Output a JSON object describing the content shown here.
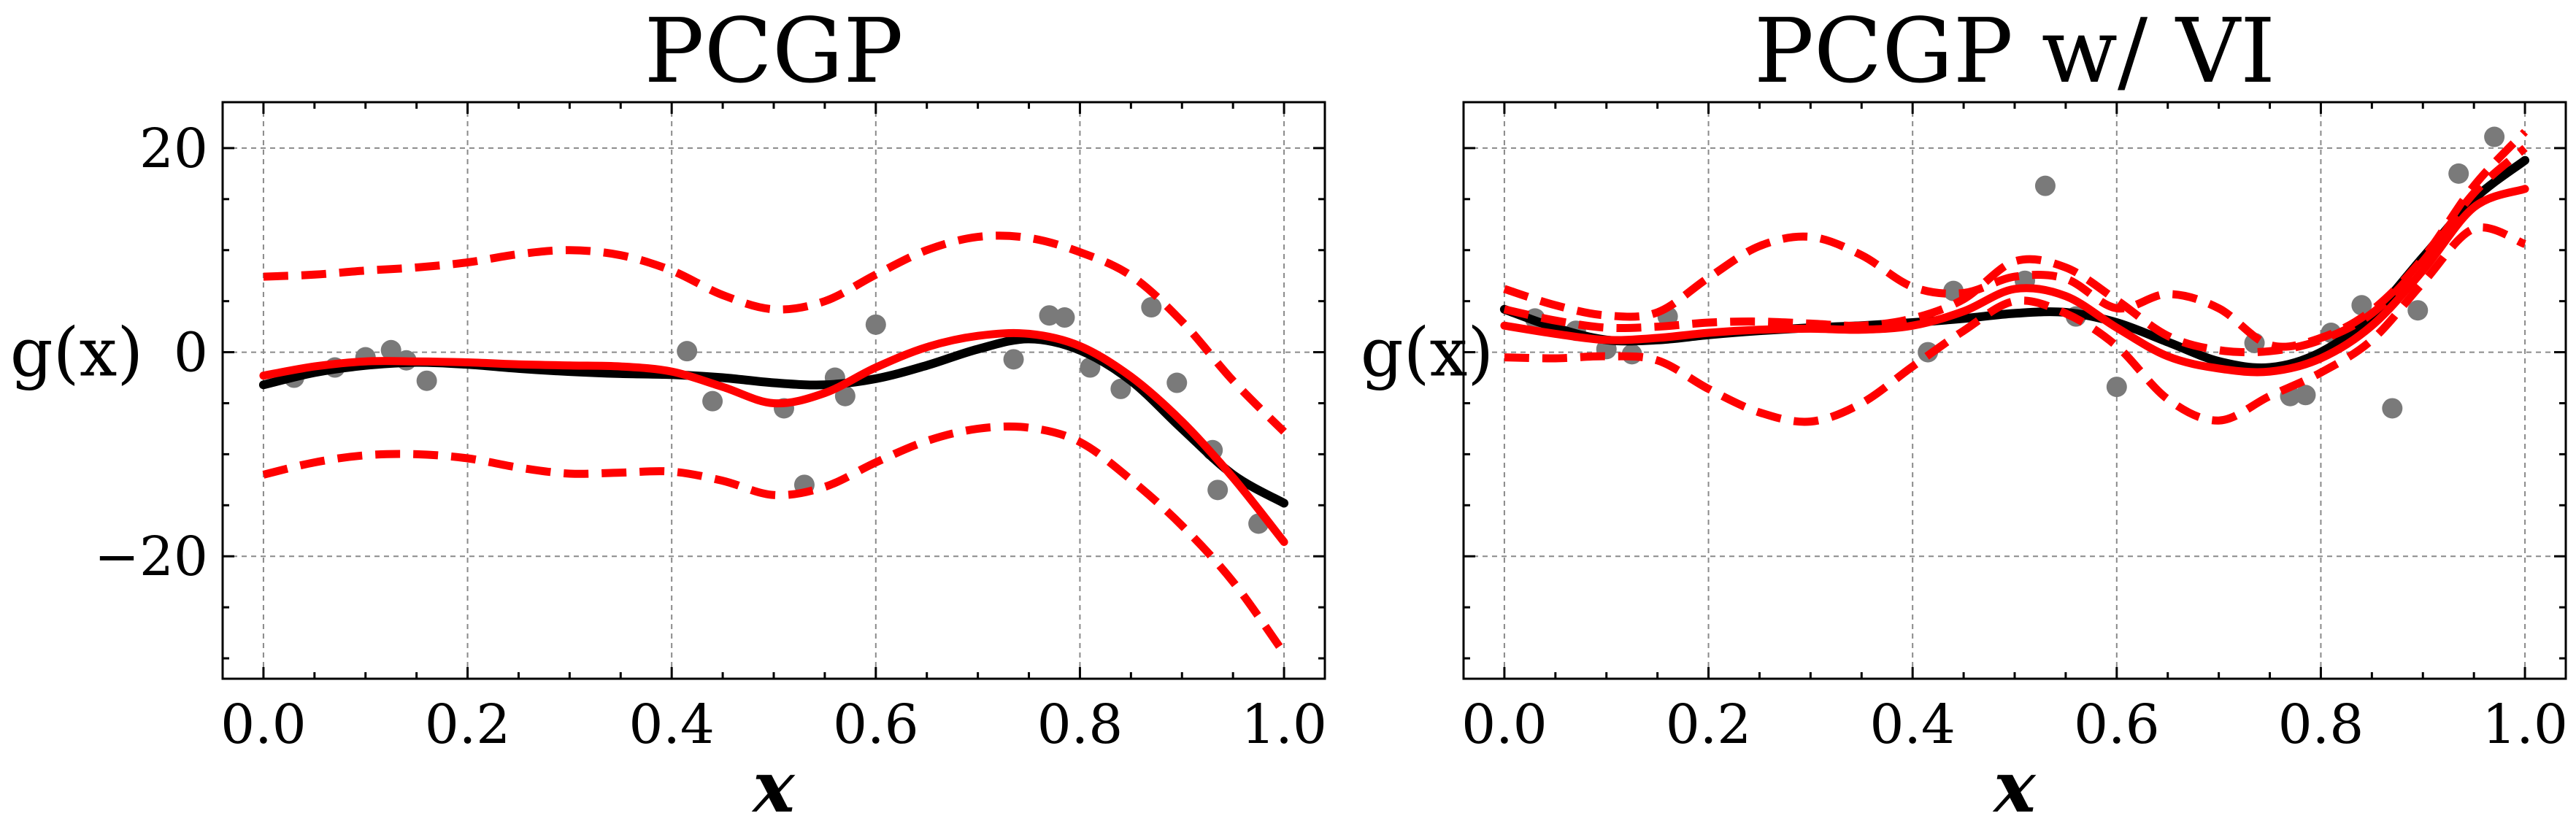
{
  "chart_data": [
    {
      "type": "line",
      "title": "PCGP",
      "xlabel": "x",
      "ylabel": "g(x)",
      "xlim": [
        -0.04,
        1.04
      ],
      "ylim": [
        -32,
        24.5
      ],
      "xticks": [
        0.0,
        0.2,
        0.4,
        0.6,
        0.8,
        1.0
      ],
      "xtick_labels": [
        "0.0",
        "0.2",
        "0.4",
        "0.6",
        "0.8",
        "1.0"
      ],
      "yticks": [
        20,
        0,
        -20
      ],
      "ytick_labels": [
        "20",
        "0",
        "−20"
      ],
      "show_y_tick_labels": true,
      "grid": true,
      "points": {
        "x": [
          0.03,
          0.07,
          0.1,
          0.125,
          0.14,
          0.16,
          0.415,
          0.44,
          0.51,
          0.53,
          0.56,
          0.57,
          0.6,
          0.735,
          0.77,
          0.785,
          0.81,
          0.84,
          0.87,
          0.895,
          0.93,
          0.935,
          0.975
        ],
        "y": [
          -2.5,
          -1.5,
          -0.5,
          0.2,
          -0.8,
          -2.8,
          0.1,
          -4.8,
          -5.5,
          -13,
          -2.5,
          -4.3,
          2.7,
          -0.7,
          3.6,
          3.4,
          -1.5,
          -3.6,
          4.4,
          -3,
          -9.6,
          -13.5,
          -16.8
        ]
      },
      "series": [
        {
          "role": "true-function",
          "color": "#000000",
          "x": [
            0.0,
            0.05,
            0.1,
            0.15,
            0.2,
            0.25,
            0.3,
            0.35,
            0.4,
            0.45,
            0.5,
            0.55,
            0.6,
            0.65,
            0.7,
            0.75,
            0.8,
            0.85,
            0.9,
            0.95,
            1.0
          ],
          "y": [
            -3.2,
            -2.0,
            -1.3,
            -1.0,
            -1.2,
            -1.6,
            -1.9,
            -2.1,
            -2.2,
            -2.5,
            -3.0,
            -3.2,
            -2.6,
            -1.3,
            0.3,
            1.3,
            0.2,
            -2.8,
            -7.5,
            -12.0,
            -14.8
          ]
        },
        {
          "role": "prediction",
          "color": "#ff0000",
          "x": [
            0.0,
            0.05,
            0.1,
            0.15,
            0.2,
            0.25,
            0.3,
            0.35,
            0.4,
            0.45,
            0.5,
            0.55,
            0.6,
            0.65,
            0.7,
            0.75,
            0.8,
            0.85,
            0.9,
            0.95,
            1.0
          ],
          "y": [
            -2.3,
            -1.4,
            -0.9,
            -0.9,
            -1.0,
            -1.2,
            -1.3,
            -1.4,
            -1.9,
            -3.4,
            -5.0,
            -4.0,
            -1.5,
            0.5,
            1.6,
            1.8,
            0.6,
            -2.4,
            -6.8,
            -12.3,
            -18.6
          ]
        },
        {
          "role": "upper-band",
          "color": "#ff0000",
          "x": [
            0.0,
            0.05,
            0.1,
            0.15,
            0.2,
            0.25,
            0.3,
            0.35,
            0.4,
            0.45,
            0.5,
            0.55,
            0.6,
            0.65,
            0.7,
            0.75,
            0.8,
            0.85,
            0.9,
            0.95,
            1.0
          ],
          "y": [
            7.4,
            7.6,
            8.0,
            8.3,
            8.8,
            9.6,
            10.0,
            9.5,
            8.0,
            5.6,
            4.2,
            5.0,
            7.6,
            10.0,
            11.3,
            11.2,
            9.8,
            7.5,
            3.0,
            -2.8,
            -7.8
          ]
        },
        {
          "role": "lower-band",
          "color": "#ff0000",
          "x": [
            0.0,
            0.05,
            0.1,
            0.15,
            0.2,
            0.25,
            0.3,
            0.35,
            0.4,
            0.45,
            0.5,
            0.55,
            0.6,
            0.65,
            0.7,
            0.75,
            0.8,
            0.85,
            0.9,
            0.95,
            1.0
          ],
          "y": [
            -12.0,
            -10.8,
            -10.1,
            -10.0,
            -10.4,
            -11.3,
            -11.9,
            -11.8,
            -11.7,
            -12.6,
            -14.0,
            -13.2,
            -10.8,
            -8.7,
            -7.5,
            -7.4,
            -8.8,
            -12.5,
            -17.0,
            -22.5,
            -29.5
          ]
        }
      ]
    },
    {
      "type": "line",
      "title": "PCGP w/ VI",
      "xlabel": "x",
      "ylabel": "g(x)",
      "xlim": [
        -0.04,
        1.04
      ],
      "ylim": [
        -32,
        24.5
      ],
      "xticks": [
        0.0,
        0.2,
        0.4,
        0.6,
        0.8,
        1.0
      ],
      "xtick_labels": [
        "0.0",
        "0.2",
        "0.4",
        "0.6",
        "0.8",
        "1.0"
      ],
      "yticks": [
        20,
        0,
        -20
      ],
      "ytick_labels": [
        "20",
        "0",
        "−20"
      ],
      "show_y_tick_labels": false,
      "grid": true,
      "points": {
        "x": [
          0.03,
          0.07,
          0.1,
          0.125,
          0.16,
          0.415,
          0.44,
          0.51,
          0.53,
          0.56,
          0.6,
          0.735,
          0.77,
          0.785,
          0.81,
          0.84,
          0.87,
          0.895,
          0.935,
          0.97
        ],
        "y": [
          3.3,
          2.1,
          0.3,
          -0.2,
          3.5,
          0.0,
          6.0,
          7.0,
          16.3,
          3.5,
          -3.4,
          0.9,
          -4.3,
          -4.2,
          1.9,
          4.6,
          -5.5,
          4.1,
          17.5,
          21.1
        ]
      },
      "series": [
        {
          "role": "true-function",
          "color": "#000000",
          "x": [
            0.0,
            0.05,
            0.1,
            0.15,
            0.2,
            0.25,
            0.3,
            0.35,
            0.4,
            0.45,
            0.5,
            0.55,
            0.6,
            0.65,
            0.7,
            0.75,
            0.8,
            0.85,
            0.9,
            0.95,
            1.0
          ],
          "y": [
            4.2,
            2.4,
            1.2,
            1.2,
            1.7,
            2.1,
            2.4,
            2.6,
            2.9,
            3.3,
            3.8,
            3.9,
            2.9,
            1.0,
            -0.9,
            -1.5,
            0.0,
            3.6,
            9.3,
            15.0,
            18.8
          ]
        },
        {
          "role": "prediction",
          "color": "#ff0000",
          "x": [
            0.0,
            0.05,
            0.1,
            0.15,
            0.2,
            0.25,
            0.3,
            0.35,
            0.4,
            0.45,
            0.5,
            0.55,
            0.6,
            0.65,
            0.7,
            0.75,
            0.8,
            0.85,
            0.9,
            0.95,
            1.0
          ],
          "y": [
            2.6,
            1.8,
            1.2,
            1.4,
            1.9,
            2.2,
            2.3,
            2.2,
            2.6,
            4.0,
            6.2,
            5.5,
            2.4,
            -0.4,
            -1.6,
            -1.9,
            -0.6,
            2.6,
            8.0,
            14.2,
            16.0
          ]
        },
        {
          "role": "upper-band",
          "color": "#ff0000",
          "x": [
            0.0,
            0.05,
            0.1,
            0.15,
            0.2,
            0.25,
            0.3,
            0.35,
            0.4,
            0.45,
            0.5,
            0.55,
            0.6,
            0.65,
            0.7,
            0.75,
            0.8,
            0.85,
            0.9,
            0.95,
            1.0
          ],
          "y": [
            6.2,
            4.6,
            3.6,
            3.9,
            7.3,
            10.4,
            11.3,
            9.5,
            6.4,
            5.8,
            7.4,
            7.2,
            4.3,
            5.7,
            4.3,
            0.7,
            1.4,
            4.1,
            9.2,
            16.3,
            21.6
          ]
        },
        {
          "role": "lower-band",
          "color": "#ff0000",
          "x": [
            0.0,
            0.05,
            0.1,
            0.15,
            0.2,
            0.25,
            0.3,
            0.35,
            0.4,
            0.45,
            0.5,
            0.55,
            0.6,
            0.65,
            0.7,
            0.75,
            0.8,
            0.85,
            0.9,
            0.95,
            1.0
          ],
          "y": [
            -0.5,
            -0.6,
            -0.4,
            -0.8,
            -3.6,
            -5.9,
            -6.8,
            -5.0,
            -1.4,
            2.1,
            5.0,
            3.8,
            0.6,
            -4.6,
            -6.7,
            -4.3,
            -2.0,
            1.2,
            6.8,
            12.1,
            10.6
          ]
        },
        {
          "role": "upper-band-inner",
          "color": "#ff0000",
          "x": [
            0.0,
            0.05,
            0.1,
            0.15,
            0.2,
            0.25,
            0.3,
            0.35,
            0.4,
            0.45,
            0.5,
            0.55,
            0.6,
            0.65,
            0.7,
            0.75,
            0.8,
            0.85,
            0.9,
            0.95,
            1.0
          ],
          "y": [
            4.2,
            3.1,
            2.4,
            2.5,
            2.9,
            3.0,
            2.8,
            2.6,
            3.3,
            5.2,
            8.9,
            8.3,
            5.1,
            1.6,
            0.2,
            0.1,
            1.2,
            3.8,
            8.9,
            15.6,
            20.0
          ]
        }
      ]
    }
  ]
}
